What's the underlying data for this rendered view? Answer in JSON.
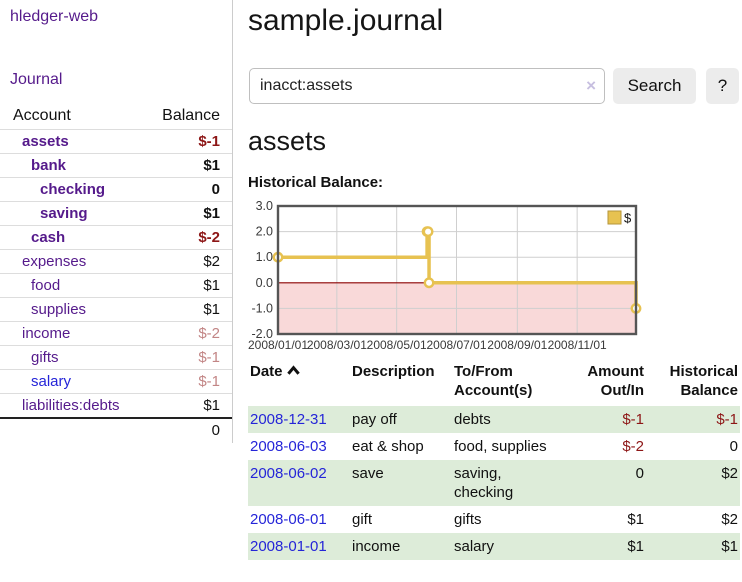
{
  "app": {
    "title": "hledger-web"
  },
  "sidebar": {
    "journal_link": "Journal",
    "headers": {
      "account": "Account",
      "balance": "Balance"
    },
    "accounts": [
      {
        "label": "assets",
        "level": 1,
        "bold": true,
        "link": "purple",
        "value": "$-1",
        "vstyle": "neg-strong"
      },
      {
        "label": "bank",
        "level": 2,
        "bold": true,
        "link": "purple",
        "value": "$1",
        "vstyle": "strong"
      },
      {
        "label": "checking",
        "level": 3,
        "bold": true,
        "link": "purple",
        "value": "0",
        "vstyle": "strong"
      },
      {
        "label": "saving",
        "level": 3,
        "bold": true,
        "link": "purple",
        "value": "$1",
        "vstyle": "strong"
      },
      {
        "label": "cash",
        "level": 2,
        "bold": true,
        "link": "purple",
        "value": "$-2",
        "vstyle": "neg-strong"
      },
      {
        "label": "expenses",
        "level": 1,
        "bold": false,
        "link": "purple",
        "value": "$2",
        "vstyle": "plain"
      },
      {
        "label": "food",
        "level": 2,
        "bold": false,
        "link": "purple",
        "value": "$1",
        "vstyle": "plain"
      },
      {
        "label": "supplies",
        "level": 2,
        "bold": false,
        "link": "purple",
        "value": "$1",
        "vstyle": "plain"
      },
      {
        "label": "income",
        "level": 1,
        "bold": false,
        "link": "purple",
        "value": "$-2",
        "vstyle": "neg-soft"
      },
      {
        "label": "gifts",
        "level": 2,
        "bold": false,
        "link": "purple",
        "value": "$-1",
        "vstyle": "neg-soft"
      },
      {
        "label": "salary",
        "level": 2,
        "bold": false,
        "link": "blue",
        "value": "$-1",
        "vstyle": "neg-soft"
      },
      {
        "label": "liabilities:debts",
        "level": 1,
        "bold": false,
        "link": "purple",
        "value": "$1",
        "vstyle": "plain"
      }
    ],
    "total": "0"
  },
  "main": {
    "title": "sample.journal",
    "search": {
      "value": "inacct:assets",
      "clear_icon": "×",
      "button_label": "Search",
      "help_label": "?"
    },
    "section_title": "assets",
    "chart_heading": "Historical Balance:"
  },
  "chart_data": {
    "type": "line",
    "step": true,
    "title": "Historical Balance:",
    "x_range": [
      "2008-01-01",
      "2008-12-31"
    ],
    "ylim": [
      -2,
      3
    ],
    "y_ticks": [
      "3.0",
      "2.0",
      "1.0",
      "0.0",
      "-1.0",
      "-2.0"
    ],
    "x_ticks": [
      {
        "date": "2008-01-01",
        "label": "2008/01/01"
      },
      {
        "date": "2008-03-01",
        "label": "2008/03/01"
      },
      {
        "date": "2008-05-01",
        "label": "2008/05/01"
      },
      {
        "date": "2008-07-01",
        "label": "2008/07/01"
      },
      {
        "date": "2008-09-01",
        "label": "2008/09/01"
      },
      {
        "date": "2008-11-01",
        "label": "2008/11/01"
      }
    ],
    "series": [
      {
        "name": "$",
        "color": "#e7c251",
        "points": [
          {
            "x": "2008-01-01",
            "y": 1
          },
          {
            "x": "2008-06-01",
            "y": 2
          },
          {
            "x": "2008-06-02",
            "y": 2
          },
          {
            "x": "2008-06-03",
            "y": 0
          },
          {
            "x": "2008-12-31",
            "y": -1
          }
        ]
      }
    ],
    "legend": {
      "position": "top-right",
      "entries": [
        "$"
      ]
    },
    "grid": true,
    "negative_region_fill": "#f9d9d9",
    "zero_line_color": "#8b0000",
    "plot_border_color": "#555555"
  },
  "register": {
    "headers": {
      "date": "Date",
      "description": "Description",
      "account": "To/From Account(s)",
      "amount": "Amount Out/In",
      "balance": "Historical Balance"
    },
    "sort": {
      "column": "date",
      "direction": "asc"
    },
    "rows": [
      {
        "date": "2008-12-31",
        "description": "pay off",
        "accounts": "debts",
        "amount": "$-1",
        "amount_neg": true,
        "balance": "$-1",
        "balance_neg": true,
        "stripe": true
      },
      {
        "date": "2008-06-03",
        "description": "eat & shop",
        "accounts": "food, supplies",
        "amount": "$-2",
        "amount_neg": true,
        "balance": "0",
        "balance_neg": false,
        "stripe": false
      },
      {
        "date": "2008-06-02",
        "description": "save",
        "accounts": "saving, checking",
        "amount": "0",
        "amount_neg": false,
        "balance": "$2",
        "balance_neg": false,
        "stripe": true
      },
      {
        "date": "2008-06-01",
        "description": "gift",
        "accounts": "gifts",
        "amount": "$1",
        "amount_neg": false,
        "balance": "$2",
        "balance_neg": false,
        "stripe": false
      },
      {
        "date": "2008-01-01",
        "description": "income",
        "accounts": "salary",
        "amount": "$1",
        "amount_neg": false,
        "balance": "$1",
        "balance_neg": false,
        "stripe": true
      }
    ]
  }
}
